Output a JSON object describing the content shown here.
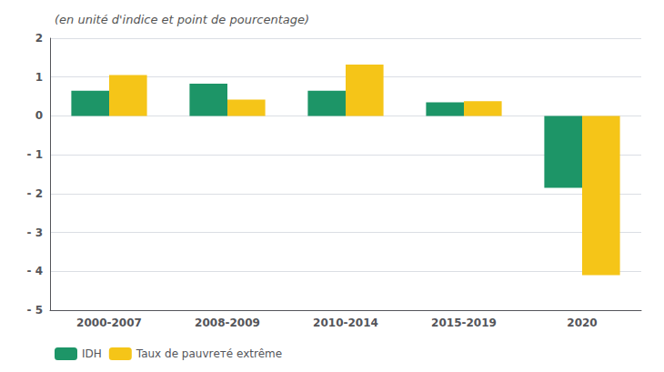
{
  "chart_data": {
    "type": "bar",
    "subtitle": "(en unité d'indice et point de pourcentage)",
    "categories": [
      "2000-2007",
      "2008-2009",
      "2010-2014",
      "2015-2019",
      "2020"
    ],
    "series": [
      {
        "name": "IDH",
        "color": "#1d9567",
        "values": [
          0.65,
          0.83,
          0.65,
          0.35,
          -1.85
        ]
      },
      {
        "name": "Taux de pauvrетé extrême",
        "color": "#f5c518",
        "values": [
          1.05,
          0.42,
          1.32,
          0.38,
          -4.1
        ]
      }
    ],
    "ylim": [
      -5,
      2
    ],
    "yticks": [
      {
        "value": -5,
        "label": "- 5"
      },
      {
        "value": -4,
        "label": "- 4"
      },
      {
        "value": -3,
        "label": "- 3"
      },
      {
        "value": -2,
        "label": "- 2"
      },
      {
        "value": -1,
        "label": "- 1"
      },
      0,
      1,
      2
    ],
    "grid": true,
    "legend": "bottom"
  }
}
